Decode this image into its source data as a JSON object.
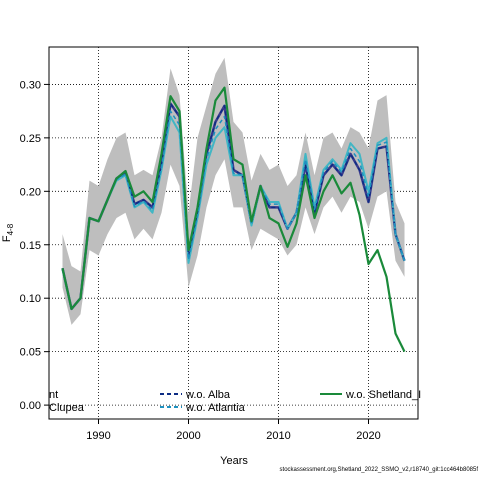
{
  "chart_data": {
    "type": "line",
    "xlabel": "Years",
    "ylabel": "F",
    "ylabel_sub": "4-8",
    "xlim": [
      1984.5,
      2025.5
    ],
    "ylim": [
      -0.013,
      0.335
    ],
    "x_ticks": [
      1990,
      2000,
      2010,
      2020
    ],
    "y_ticks": [
      0.0,
      0.05,
      0.1,
      0.15,
      0.2,
      0.25,
      0.3
    ],
    "y_tick_labels": [
      "0.00",
      "0.05",
      "0.10",
      "0.15",
      "0.20",
      "0.25",
      "0.30"
    ],
    "grid": true,
    "band_color": "#bebebe",
    "years": [
      1986,
      1987,
      1988,
      1989,
      1990,
      1991,
      1992,
      1993,
      1994,
      1995,
      1996,
      1997,
      1998,
      1999,
      2000,
      2001,
      2002,
      2003,
      2004,
      2005,
      2006,
      2007,
      2008,
      2009,
      2010,
      2011,
      2012,
      2013,
      2014,
      2015,
      2016,
      2017,
      2018,
      2019,
      2020,
      2021,
      2022,
      2023,
      2024
    ],
    "band_upper": [
      0.16,
      0.13,
      0.125,
      0.21,
      0.205,
      0.23,
      0.25,
      0.255,
      0.215,
      0.22,
      0.215,
      0.25,
      0.315,
      0.29,
      0.18,
      0.25,
      0.28,
      0.31,
      0.325,
      0.265,
      0.255,
      0.21,
      0.235,
      0.22,
      0.225,
      0.205,
      0.215,
      0.255,
      0.215,
      0.25,
      0.255,
      0.24,
      0.26,
      0.255,
      0.24,
      0.285,
      0.29,
      0.19,
      0.17
    ],
    "band_lower": [
      0.11,
      0.075,
      0.085,
      0.145,
      0.14,
      0.16,
      0.175,
      0.18,
      0.155,
      0.165,
      0.155,
      0.18,
      0.225,
      0.205,
      0.11,
      0.14,
      0.185,
      0.215,
      0.23,
      0.185,
      0.185,
      0.145,
      0.165,
      0.16,
      0.155,
      0.14,
      0.15,
      0.185,
      0.16,
      0.185,
      0.195,
      0.18,
      0.195,
      0.19,
      0.165,
      0.195,
      0.2,
      0.135,
      0.12
    ],
    "series": [
      {
        "name": "",
        "color": "#3a3a8c",
        "width": 2.5,
        "values": [
          0.128,
          0.09,
          0.1,
          0.175,
          0.172,
          0.192,
          0.212,
          0.218,
          0.188,
          0.192,
          0.185,
          0.225,
          0.282,
          0.27,
          0.14,
          0.18,
          0.235,
          0.265,
          0.28,
          0.22,
          0.215,
          0.17,
          0.205,
          0.185,
          0.185,
          0.165,
          0.18,
          0.225,
          0.18,
          0.215,
          0.225,
          0.215,
          0.235,
          0.22,
          0.19,
          0.24,
          0.242,
          0.16,
          0.135
        ]
      },
      {
        "name": "",
        "color": "#41b6c4",
        "width": 2,
        "values": [
          0.127,
          0.09,
          0.1,
          0.175,
          0.172,
          0.192,
          0.21,
          0.215,
          0.185,
          0.19,
          0.18,
          0.22,
          0.27,
          0.255,
          0.133,
          0.175,
          0.225,
          0.25,
          0.26,
          0.215,
          0.215,
          0.168,
          0.205,
          0.19,
          0.19,
          0.165,
          0.18,
          0.235,
          0.185,
          0.22,
          0.23,
          0.22,
          0.245,
          0.235,
          0.2,
          0.245,
          0.25,
          0.16,
          0.135
        ]
      },
      {
        "name": "w.o. Alba",
        "color": "#0c2c84",
        "width": 1.5,
        "dash": "4,3",
        "values": [
          0.128,
          0.09,
          0.1,
          0.175,
          0.172,
          0.192,
          0.212,
          0.218,
          0.188,
          0.192,
          0.185,
          0.225,
          0.282,
          0.27,
          0.14,
          0.18,
          0.235,
          0.265,
          0.28,
          0.22,
          0.215,
          0.17,
          0.205,
          0.185,
          0.185,
          0.165,
          0.18,
          0.225,
          0.18,
          0.215,
          0.225,
          0.215,
          0.235,
          0.22,
          0.19,
          0.24,
          0.242,
          0.16,
          0.135
        ]
      },
      {
        "name": "w.o. Atlantia",
        "color": "#1d91c0",
        "width": 1.5,
        "dash": "4,3",
        "values": [
          0.127,
          0.09,
          0.1,
          0.175,
          0.172,
          0.192,
          0.211,
          0.216,
          0.186,
          0.191,
          0.182,
          0.222,
          0.275,
          0.262,
          0.136,
          0.177,
          0.23,
          0.258,
          0.27,
          0.217,
          0.215,
          0.169,
          0.205,
          0.188,
          0.188,
          0.165,
          0.18,
          0.23,
          0.183,
          0.218,
          0.228,
          0.218,
          0.24,
          0.228,
          0.195,
          0.243,
          0.246,
          0.16,
          0.135
        ]
      },
      {
        "name": "w.o. Shetland_I",
        "color": "#1a8a3a",
        "width": 2.2,
        "values": [
          0.128,
          0.09,
          0.1,
          0.175,
          0.172,
          0.192,
          0.212,
          0.219,
          0.195,
          0.2,
          0.19,
          0.235,
          0.289,
          0.275,
          0.145,
          0.185,
          0.24,
          0.285,
          0.297,
          0.23,
          0.225,
          0.172,
          0.205,
          0.175,
          0.17,
          0.148,
          0.17,
          0.215,
          0.175,
          0.2,
          0.215,
          0.198,
          0.208,
          0.178,
          0.132,
          0.145,
          0.12,
          0.067,
          0.05
        ]
      }
    ],
    "legend": {
      "col1": [
        {
          "label": "nt",
          "color": "#000000"
        },
        {
          "label": "Clupea",
          "color": "#000000"
        }
      ]
    }
  },
  "footer": "stockassessment.org,Shetland_2022_SSMO_v2,r18740_git:1cc464b8085f"
}
